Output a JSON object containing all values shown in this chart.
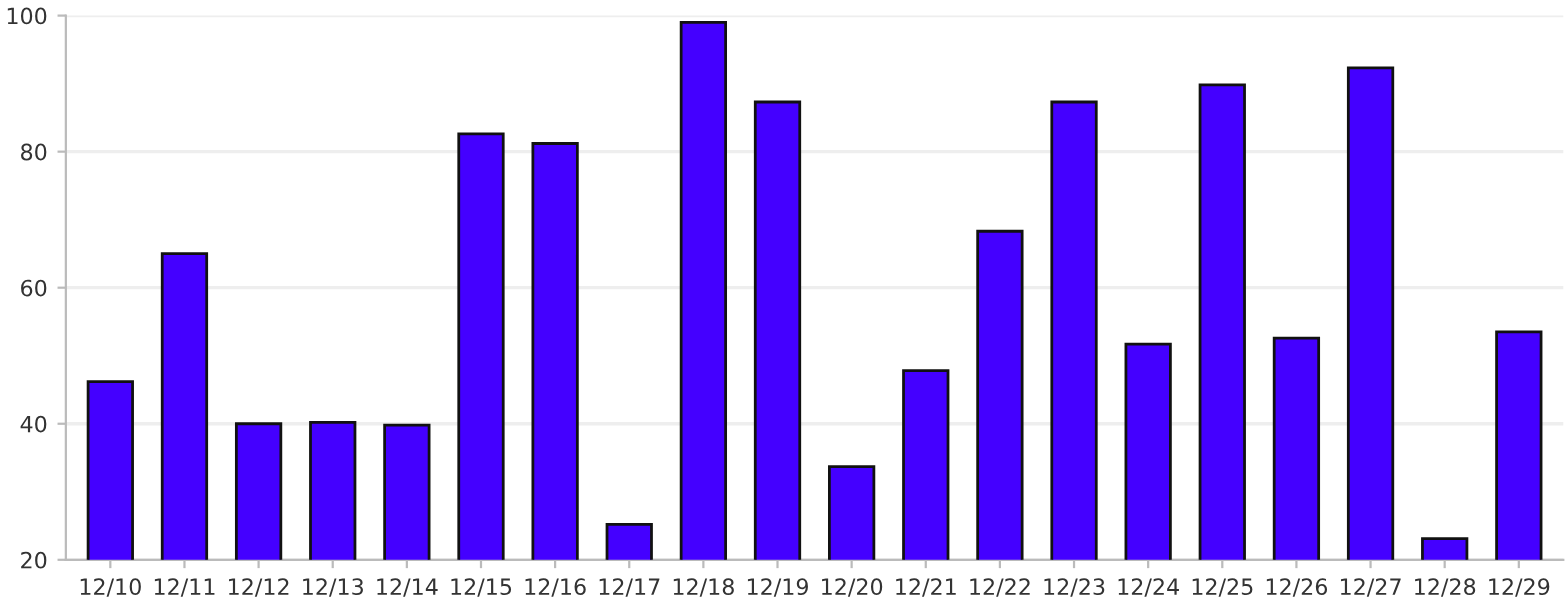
{
  "chart_data": {
    "type": "bar",
    "categories": [
      "12/10",
      "12/11",
      "12/12",
      "12/13",
      "12/14",
      "12/15",
      "12/16",
      "12/17",
      "12/18",
      "12/19",
      "12/20",
      "12/21",
      "12/22",
      "12/23",
      "12/24",
      "12/25",
      "12/26",
      "12/27",
      "12/28",
      "12/29"
    ],
    "values": [
      46.2,
      65,
      40,
      40.2,
      39.8,
      82.6,
      81.2,
      25.2,
      99,
      87.3,
      33.7,
      47.8,
      68.3,
      87.3,
      51.7,
      89.8,
      52.6,
      92.3,
      23.1,
      53.5
    ],
    "color": "#4400ff",
    "ylim": [
      20,
      100
    ],
    "yticks": [
      20,
      40,
      60,
      80,
      100
    ],
    "grid": "y"
  }
}
